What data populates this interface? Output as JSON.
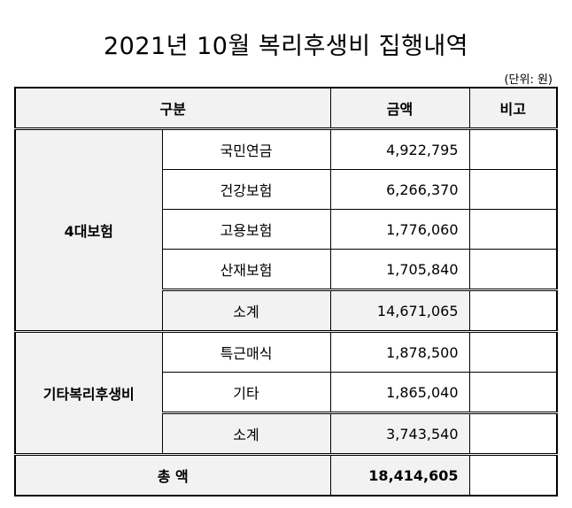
{
  "title": "2021년 10월 복리후생비 집행내역",
  "unit": "(단위: 원)",
  "headers": {
    "category": "구분",
    "amount": "금액",
    "note": "비고"
  },
  "groups": [
    {
      "name": "4대보험",
      "items": [
        {
          "label": "국민연금",
          "amount": "4,922,795"
        },
        {
          "label": "건강보험",
          "amount": "6,266,370"
        },
        {
          "label": "고용보험",
          "amount": "1,776,060"
        },
        {
          "label": "산재보험",
          "amount": "1,705,840"
        }
      ],
      "subtotal": {
        "label": "소계",
        "amount": "14,671,065"
      }
    },
    {
      "name": "기타복리후생비",
      "items": [
        {
          "label": "특근매식",
          "amount": "1,878,500"
        },
        {
          "label": "기타",
          "amount": "1,865,040"
        }
      ],
      "subtotal": {
        "label": "소계",
        "amount": "3,743,540"
      }
    }
  ],
  "total": {
    "label": "총 액",
    "amount": "18,414,605"
  }
}
